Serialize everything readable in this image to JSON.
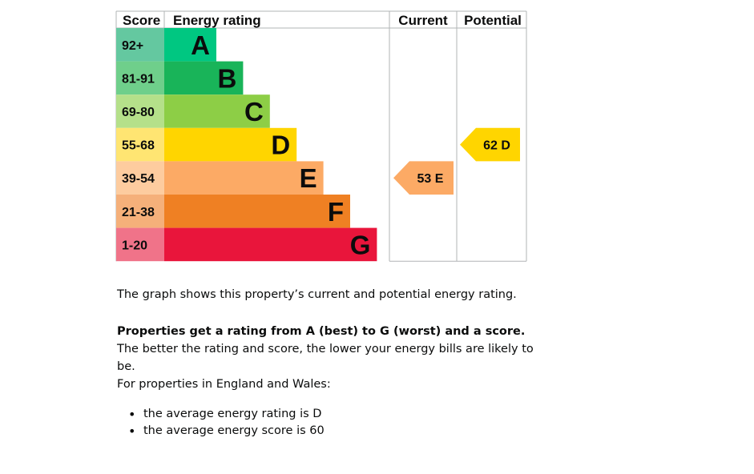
{
  "chart_data": {
    "type": "bar",
    "headers": {
      "score": "Score",
      "rating": "Energy rating",
      "current": "Current",
      "potential": "Potential"
    },
    "bands": [
      {
        "letter": "A",
        "range": "92+",
        "color": "#008054",
        "score_color": "#64c8a0",
        "bar_color": "#00c781"
      },
      {
        "letter": "B",
        "range": "81-91",
        "color": "#19b459",
        "score_color": "#6fcf8b",
        "bar_color": "#19b459"
      },
      {
        "letter": "C",
        "range": "69-80",
        "color": "#8dce46",
        "score_color": "#b5e08a",
        "bar_color": "#8dce46"
      },
      {
        "letter": "D",
        "range": "55-68",
        "color": "#ffd500",
        "score_color": "#ffe572",
        "bar_color": "#ffd500"
      },
      {
        "letter": "E",
        "range": "39-54",
        "color": "#fcaa65",
        "score_color": "#fdcc9f",
        "bar_color": "#fcaa65"
      },
      {
        "letter": "F",
        "range": "21-38",
        "color": "#ef8023",
        "score_color": "#f5b07a",
        "bar_color": "#ef8023"
      },
      {
        "letter": "G",
        "range": "1-20",
        "color": "#e9153b",
        "score_color": "#f07389",
        "bar_color": "#e9153b"
      }
    ],
    "current": {
      "score": 53,
      "rating": "E",
      "color": "#fcaa65"
    },
    "potential": {
      "score": 62,
      "rating": "D",
      "color": "#ffd500"
    }
  },
  "text": {
    "p1": "The graph shows this property’s current and potential energy rating.",
    "p2_bold": "Properties get a rating from A (best) to G (worst) and a score.",
    "p2_rest": " The better the rating and score, the lower your energy bills are likely to be.",
    "p3": "For properties in England and Wales:",
    "bullets": [
      "the average energy rating is D",
      "the average energy score is 60"
    ]
  }
}
